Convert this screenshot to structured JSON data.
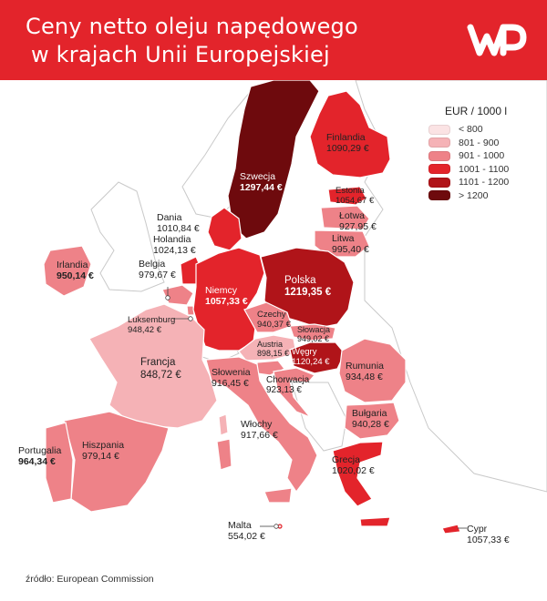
{
  "header": {
    "title_line1": "Ceny netto oleju napędowego",
    "title_line2": "w krajach Unii Europejskiej",
    "brand": "WP",
    "bg_color": "#e3242b"
  },
  "legend": {
    "title": "EUR / 1000 l",
    "items": [
      {
        "label": "< 800",
        "color": "#fbe3e4"
      },
      {
        "label": "801 - 900",
        "color": "#f5b2b6"
      },
      {
        "label": "901 - 1000",
        "color": "#ee8288"
      },
      {
        "label": "1001 - 1100",
        "color": "#e3242b"
      },
      {
        "label": "1101 - 1200",
        "color": "#b01419"
      },
      {
        "label": "> 1200",
        "color": "#6e0a0d"
      }
    ]
  },
  "countries": [
    {
      "name": "Finlandia",
      "value": "1090,29 €",
      "bracket": 3
    },
    {
      "name": "Szwecja",
      "value": "1297,44 €",
      "bracket": 5
    },
    {
      "name": "Estonia",
      "value": "1054,67 €",
      "bracket": 3
    },
    {
      "name": "Łotwa",
      "value": "927,95 €",
      "bracket": 2
    },
    {
      "name": "Litwa",
      "value": "995,40 €",
      "bracket": 2
    },
    {
      "name": "Dania",
      "value": "1010,84 €",
      "bracket": 3
    },
    {
      "name": "Holandia",
      "value": "1024,13 €",
      "bracket": 3
    },
    {
      "name": "Irlandia",
      "value": "950,14 €",
      "bracket": 2
    },
    {
      "name": "Belgia",
      "value": "979,67 €",
      "bracket": 2
    },
    {
      "name": "Polska",
      "value": "1219,35 €",
      "bracket": 5
    },
    {
      "name": "Niemcy",
      "value": "1057,33 €",
      "bracket": 3
    },
    {
      "name": "Luksemburg",
      "value": "948,42 €",
      "bracket": 2
    },
    {
      "name": "Czechy",
      "value": "940,37 €",
      "bracket": 2
    },
    {
      "name": "Słowacja",
      "value": "949,02 €",
      "bracket": 2
    },
    {
      "name": "Austria",
      "value": "898,15 €",
      "bracket": 1
    },
    {
      "name": "Węgry",
      "value": "1120,24 €",
      "bracket": 4
    },
    {
      "name": "Francja",
      "value": "848,72 €",
      "bracket": 1
    },
    {
      "name": "Rumunia",
      "value": "934,48 €",
      "bracket": 2
    },
    {
      "name": "Słowenia",
      "value": "916,45 €",
      "bracket": 2
    },
    {
      "name": "Chorwacja",
      "value": "923,13 €",
      "bracket": 2
    },
    {
      "name": "Bułgaria",
      "value": "940,28 €",
      "bracket": 2
    },
    {
      "name": "Włochy",
      "value": "917,66 €",
      "bracket": 2
    },
    {
      "name": "Portugalia",
      "value": "964,34 €",
      "bracket": 2
    },
    {
      "name": "Hiszpania",
      "value": "979,14 €",
      "bracket": 2
    },
    {
      "name": "Grecja",
      "value": "1020,02 €",
      "bracket": 3
    },
    {
      "name": "Malta",
      "value": "554,02 €",
      "bracket": 0
    },
    {
      "name": "Cypr",
      "value": "1057,33 €",
      "bracket": 3
    }
  ],
  "source": "źródło: European Commission"
}
